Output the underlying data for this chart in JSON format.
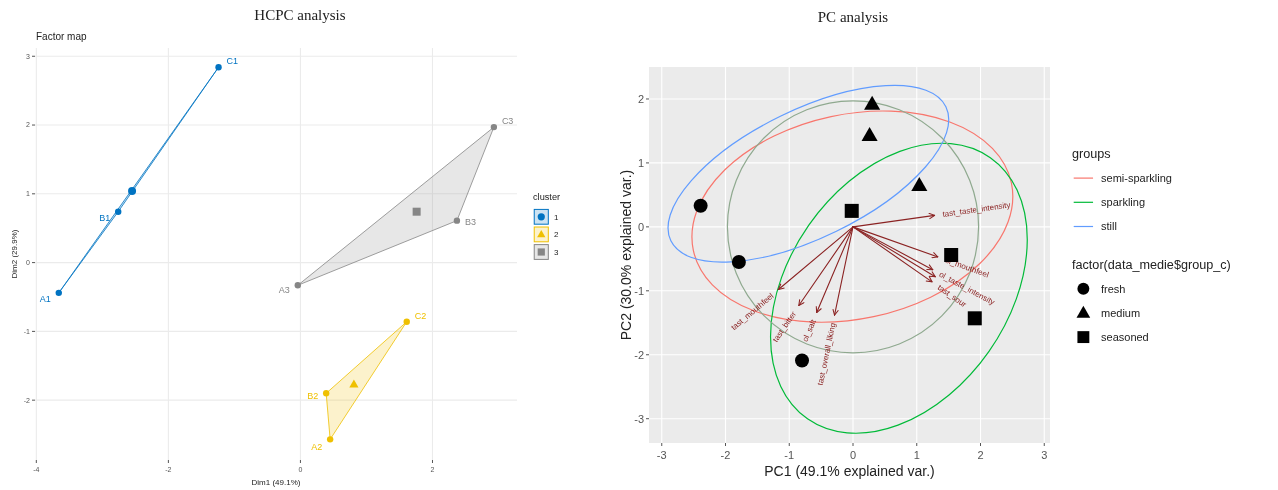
{
  "chart_data": [
    {
      "type": "scatter",
      "title": "HCPC analysis",
      "subtitle": "Factor map",
      "xlabel": "Dim1 (49.1%)",
      "ylabel": "Dim2 (29.9%)",
      "legend_title": "cluster",
      "legend": "right",
      "grid": true,
      "xlim": [
        -4.02,
        3.28
      ],
      "ylim": [
        -2.87,
        3.12
      ],
      "xticks": [
        -4,
        -2,
        0,
        2
      ],
      "yticks": [
        -2,
        -1,
        0,
        1,
        2,
        3
      ],
      "series": [
        {
          "type": "area",
          "color": "#0073c2",
          "x": [
            -3.66,
            -2.76,
            -1.24
          ],
          "values": [
            -0.44,
            0.74,
            2.84
          ]
        },
        {
          "color": "#0073c2",
          "marker": "circle",
          "x": [
            -3.66,
            -2.76,
            -1.24
          ],
          "values": [
            -0.44,
            0.74,
            2.84
          ],
          "value_labels": [
            "A1",
            "B1",
            "C1"
          ]
        },
        {
          "name": "1",
          "color": "#0073c2",
          "marker": "circle",
          "x": [
            -2.55
          ],
          "values": [
            1.04
          ]
        },
        {
          "type": "area",
          "color": "#efc000",
          "x": [
            0.45,
            1.61,
            0.39
          ],
          "values": [
            -2.57,
            -0.86,
            -1.9
          ]
        },
        {
          "color": "#efc000",
          "marker": "circle",
          "x": [
            0.45,
            1.61,
            0.39
          ],
          "values": [
            -2.57,
            -0.86,
            -1.9
          ],
          "value_labels": [
            "A2",
            "C2",
            "B2"
          ]
        },
        {
          "name": "2",
          "color": "#efc000",
          "marker": "triangle",
          "x": [
            0.81
          ],
          "values": [
            -1.77
          ]
        },
        {
          "type": "area",
          "color": "#868686",
          "x": [
            -0.04,
            2.37,
            2.93
          ],
          "values": [
            -0.33,
            0.61,
            1.97
          ]
        },
        {
          "color": "#868686",
          "marker": "circle",
          "x": [
            -0.04,
            2.37,
            2.93
          ],
          "values": [
            -0.33,
            0.61,
            1.97
          ],
          "value_labels": [
            "A3",
            "B3",
            "C3"
          ]
        },
        {
          "name": "3",
          "color": "#868686",
          "marker": "square",
          "x": [
            1.76
          ],
          "values": [
            0.74
          ]
        }
      ]
    },
    {
      "type": "scatter",
      "title": "PC analysis",
      "xlabel": "PC1 (49.1% explained var.)",
      "ylabel": "PC2 (30.0% explained var.)",
      "legend_title": "groups",
      "legend": "right",
      "grid": true,
      "annotations": [
        "factor(data_medie$group_c)"
      ],
      "xlim": [
        -3.2,
        3.09
      ],
      "ylim": [
        -3.38,
        2.5
      ],
      "xticks": [
        -3,
        -2,
        -1,
        0,
        1,
        2,
        3
      ],
      "yticks": [
        -3,
        -2,
        -1,
        0,
        1,
        2
      ],
      "series": [
        {
          "name": "semi-sparkling",
          "type": "line",
          "color": "#f8766d"
        },
        {
          "name": "sparkling",
          "type": "line",
          "color": "#00ba38"
        },
        {
          "name": "still",
          "type": "line",
          "color": "#619cff"
        },
        {
          "type": "line",
          "color": "#8b2323",
          "x": [
            0,
            1.28
          ],
          "values": [
            0,
            0.18
          ],
          "value_labels": [
            null,
            "tast_taste_intensity"
          ]
        },
        {
          "type": "line",
          "color": "#8b2323",
          "x": [
            0,
            1.33
          ],
          "values": [
            0,
            -0.47
          ],
          "value_labels": [
            null,
            "ol_mouthfeel"
          ]
        },
        {
          "type": "line",
          "color": "#8b2323",
          "x": [
            0,
            1.25
          ],
          "values": [
            0,
            -0.67
          ],
          "value_labels": [
            null,
            "ol_taste_intensity"
          ]
        },
        {
          "type": "line",
          "color": "#8b2323",
          "x": [
            0,
            1.29
          ],
          "values": [
            0,
            -0.78
          ],
          "value_labels": [
            null,
            null
          ]
        },
        {
          "type": "line",
          "color": "#8b2323",
          "x": [
            0,
            1.24
          ],
          "values": [
            0,
            -0.86
          ],
          "value_labels": [
            null,
            "tast_sour"
          ]
        },
        {
          "type": "line",
          "color": "#8b2323",
          "x": [
            0,
            -1.17
          ],
          "values": [
            0,
            -0.98
          ],
          "value_labels": [
            null,
            "tast_mouthfeel"
          ]
        },
        {
          "type": "line",
          "color": "#8b2323",
          "x": [
            0,
            -0.85
          ],
          "values": [
            0,
            -1.23
          ],
          "value_labels": [
            null,
            "tast_bitter"
          ]
        },
        {
          "type": "line",
          "color": "#8b2323",
          "x": [
            0,
            -0.57
          ],
          "values": [
            0,
            -1.34
          ],
          "value_labels": [
            null,
            "ol_salt"
          ]
        },
        {
          "type": "line",
          "color": "#8b2323",
          "x": [
            0,
            -0.29
          ],
          "values": [
            0,
            -1.38
          ],
          "value_labels": [
            null,
            "tast_overall_liking"
          ]
        },
        {
          "name": "fresh",
          "color": "#000000",
          "marker": "circle",
          "x": [
            -2.39,
            -1.79,
            -0.8
          ],
          "values": [
            0.33,
            -0.55,
            -2.09
          ]
        },
        {
          "name": "medium",
          "color": "#000000",
          "marker": "triangle",
          "x": [
            0.3,
            0.26,
            1.04
          ],
          "values": [
            1.92,
            1.43,
            0.65
          ]
        },
        {
          "name": "seasoned",
          "color": "#000000",
          "marker": "square",
          "x": [
            -0.02,
            1.54,
            1.91
          ],
          "values": [
            0.25,
            -0.44,
            -1.43
          ]
        }
      ]
    }
  ]
}
